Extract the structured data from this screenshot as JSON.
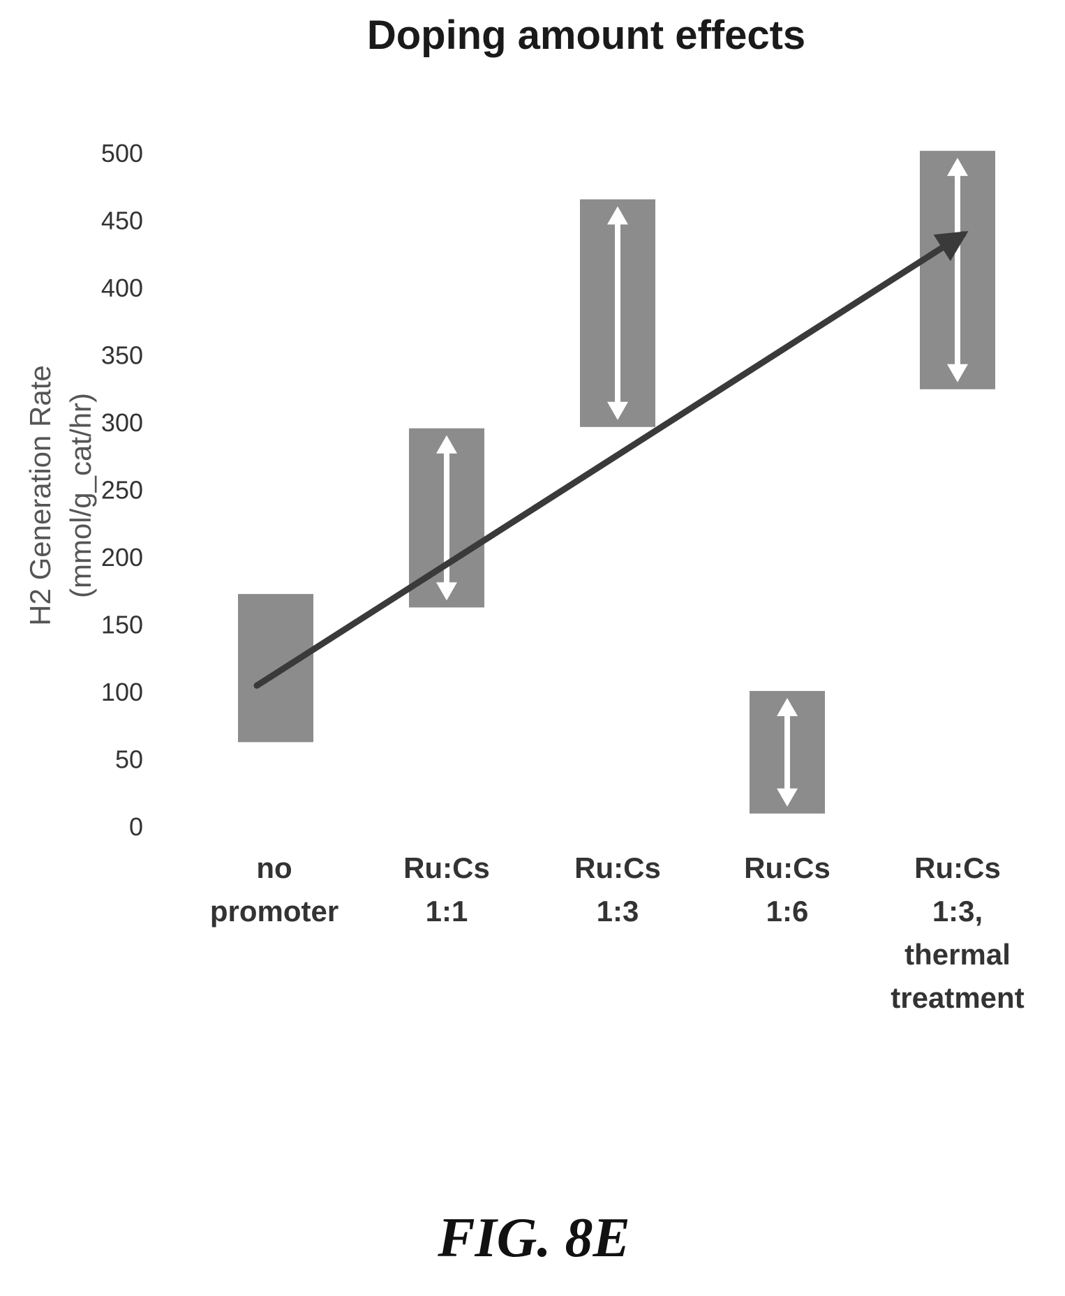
{
  "chart_data": {
    "type": "bar",
    "title": "Doping amount effects",
    "ylabel": [
      "H2 Generation Rate",
      "(mmol/g_cat/hr)"
    ],
    "xlabel": "",
    "ylim": [
      0,
      500
    ],
    "yticks": [
      0,
      50,
      100,
      150,
      200,
      250,
      300,
      350,
      400,
      450,
      500
    ],
    "grid": false,
    "categories": [
      [
        "no",
        "promoter"
      ],
      [
        "Ru:Cs",
        "1:1"
      ],
      [
        "Ru:Cs",
        "1:3"
      ],
      [
        "Ru:Cs",
        "1:6"
      ],
      [
        "Ru:Cs",
        "1:3,",
        "thermal",
        "treatment"
      ]
    ],
    "ranges": [
      {
        "low": 63,
        "high": 173,
        "arrow": false
      },
      {
        "low": 163,
        "high": 296,
        "arrow": true
      },
      {
        "low": 297,
        "high": 466,
        "arrow": true
      },
      {
        "low": 10,
        "high": 101,
        "arrow": true
      },
      {
        "low": 325,
        "high": 502,
        "arrow": true
      }
    ],
    "trend_arrow": {
      "from": [
        0,
        105
      ],
      "to": [
        4,
        440
      ]
    },
    "colors": {
      "bar": "#8c8c8c",
      "arrow": "#ffffff",
      "trend": "#3a3a3a"
    }
  },
  "figure_label": "FIG. 8E"
}
